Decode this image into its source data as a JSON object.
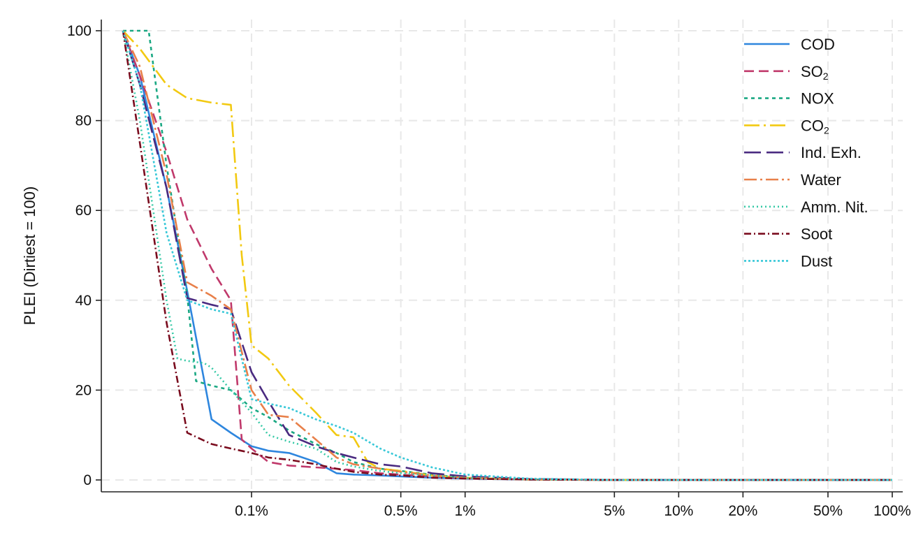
{
  "chart_data": {
    "type": "line",
    "title": "",
    "xlabel": "",
    "ylabel": "PLEI (Dirtiest = 100)",
    "x_scale": "log",
    "x_unit": "percent",
    "xlim": [
      0.025,
      100
    ],
    "ylim": [
      0,
      100
    ],
    "x_ticks": [
      0.1,
      0.5,
      1,
      5,
      10,
      20,
      50,
      100
    ],
    "x_tick_labels": [
      "0.1%",
      "0.5%",
      "1%",
      "5%",
      "10%",
      "20%",
      "50%",
      "100%"
    ],
    "y_ticks": [
      0,
      20,
      40,
      60,
      80,
      100
    ],
    "y_tick_labels": [
      "0",
      "20",
      "40",
      "60",
      "80",
      "100"
    ],
    "grid": true,
    "legend_position": "top-right",
    "series": [
      {
        "name": "COD",
        "display_base": "COD",
        "display_sub": "",
        "color": "#2e86de",
        "dash": "",
        "x": [
          0.025,
          0.03,
          0.04,
          0.05,
          0.065,
          0.08,
          0.1,
          0.12,
          0.15,
          0.2,
          0.25,
          0.3,
          0.4,
          0.5,
          0.7,
          1,
          2,
          5,
          10,
          20,
          50,
          100
        ],
        "y": [
          100,
          90,
          65,
          42,
          13.5,
          10.5,
          7.5,
          6.5,
          6,
          4,
          1.5,
          1.2,
          1,
          0.8,
          0.5,
          0.3,
          0.1,
          0,
          0,
          0,
          0,
          0
        ]
      },
      {
        "name": "SO2",
        "display_base": "SO",
        "display_sub": "2",
        "color": "#c0396b",
        "dash": "14 7",
        "x": [
          0.025,
          0.03,
          0.04,
          0.05,
          0.065,
          0.08,
          0.09,
          0.1,
          0.12,
          0.15,
          0.2,
          0.25,
          0.3,
          0.4,
          0.5,
          0.7,
          1,
          2,
          5,
          10,
          20,
          50,
          100
        ],
        "y": [
          100,
          90,
          73,
          58,
          47,
          40,
          9,
          7,
          4,
          3.2,
          2.8,
          2.5,
          2.2,
          1.5,
          1.2,
          0.8,
          0.4,
          0.1,
          0,
          0,
          0,
          0,
          0
        ]
      },
      {
        "name": "NOX",
        "display_base": "NOX",
        "display_sub": "",
        "color": "#1aa883",
        "dash": "5 5",
        "x": [
          0.025,
          0.03,
          0.033,
          0.04,
          0.05,
          0.055,
          0.065,
          0.08,
          0.1,
          0.12,
          0.15,
          0.2,
          0.25,
          0.3,
          0.4,
          0.5,
          0.7,
          1,
          2,
          5,
          10,
          20,
          50,
          100
        ],
        "y": [
          100,
          100,
          100,
          70,
          41,
          22,
          21,
          20,
          16,
          14,
          11,
          8,
          6,
          4,
          2.5,
          2,
          1.2,
          0.5,
          0.1,
          0,
          0,
          0,
          0,
          0
        ]
      },
      {
        "name": "CO2",
        "display_base": "CO",
        "display_sub": "2",
        "color": "#f2c911",
        "dash": "22 6 3 6",
        "x": [
          0.025,
          0.03,
          0.04,
          0.05,
          0.065,
          0.08,
          0.09,
          0.1,
          0.12,
          0.15,
          0.2,
          0.25,
          0.3,
          0.35,
          0.4,
          0.5,
          0.7,
          1,
          2,
          5,
          10,
          20,
          50,
          100
        ],
        "y": [
          100,
          96,
          88,
          85,
          84,
          83.5,
          50,
          30,
          27,
          21,
          15,
          10,
          9.5,
          4,
          2.5,
          2,
          1,
          0.5,
          0.1,
          0,
          0,
          0,
          0,
          0
        ]
      },
      {
        "name": "Ind. Exh.",
        "display_base": "Ind. Exh.",
        "display_sub": "",
        "color": "#4a2a80",
        "dash": "24 8",
        "x": [
          0.025,
          0.03,
          0.04,
          0.05,
          0.065,
          0.08,
          0.1,
          0.12,
          0.15,
          0.2,
          0.25,
          0.3,
          0.4,
          0.5,
          0.7,
          1,
          2,
          5,
          10,
          20,
          50,
          100
        ],
        "y": [
          100,
          88,
          65,
          40.5,
          39,
          38,
          24,
          17.5,
          10,
          7.5,
          6,
          5,
          3.5,
          3,
          1.5,
          0.8,
          0.2,
          0,
          0,
          0,
          0,
          0
        ]
      },
      {
        "name": "Water",
        "display_base": "Water",
        "display_sub": "",
        "color": "#e8804a",
        "dash": "18 5 3 5",
        "x": [
          0.025,
          0.03,
          0.04,
          0.05,
          0.065,
          0.08,
          0.1,
          0.12,
          0.15,
          0.2,
          0.25,
          0.3,
          0.4,
          0.5,
          0.7,
          1,
          2,
          5,
          10,
          20,
          50,
          100
        ],
        "y": [
          100,
          92,
          68,
          44,
          41,
          38,
          20,
          14.5,
          14,
          9,
          5,
          3.5,
          2.5,
          1.8,
          1,
          0.5,
          0.1,
          0,
          0,
          0,
          0,
          0
        ]
      },
      {
        "name": "Amm. Nit.",
        "display_base": "Amm. Nit.",
        "display_sub": "",
        "color": "#35c9a6",
        "dash": "2 4",
        "x": [
          0.025,
          0.03,
          0.04,
          0.045,
          0.05,
          0.06,
          0.065,
          0.08,
          0.1,
          0.12,
          0.15,
          0.2,
          0.25,
          0.3,
          0.4,
          0.5,
          0.7,
          1,
          2,
          5,
          10,
          20,
          50,
          100
        ],
        "y": [
          100,
          80,
          40,
          27,
          26.5,
          26,
          25,
          20,
          15,
          10,
          8.5,
          7,
          4,
          3,
          2,
          1.5,
          1,
          0.5,
          0.1,
          0,
          0,
          0,
          0,
          0
        ]
      },
      {
        "name": "Soot",
        "display_base": "Soot",
        "display_sub": "",
        "color": "#7a0c1e",
        "dash": "10 4 2 4",
        "x": [
          0.025,
          0.03,
          0.04,
          0.05,
          0.065,
          0.08,
          0.1,
          0.12,
          0.15,
          0.2,
          0.25,
          0.3,
          0.4,
          0.5,
          0.7,
          1,
          2,
          5,
          10,
          20,
          50,
          100
        ],
        "y": [
          100,
          75,
          35,
          10.5,
          8,
          7,
          6,
          5,
          4.5,
          3.5,
          2.5,
          1.8,
          1.2,
          1,
          0.5,
          0.3,
          0.1,
          0,
          0,
          0,
          0,
          0
        ]
      },
      {
        "name": "Dust",
        "display_base": "Dust",
        "display_sub": "",
        "color": "#38c8d8",
        "dash": "3 3",
        "x": [
          0.025,
          0.03,
          0.04,
          0.05,
          0.065,
          0.08,
          0.1,
          0.12,
          0.15,
          0.2,
          0.25,
          0.3,
          0.4,
          0.5,
          0.7,
          1,
          2,
          5,
          10,
          20,
          50,
          100
        ],
        "y": [
          100,
          88,
          55,
          40,
          38,
          37,
          18,
          17,
          16,
          13.5,
          12,
          10.5,
          7,
          5,
          2.8,
          1.2,
          0.3,
          0,
          0,
          0,
          0,
          0
        ]
      }
    ]
  }
}
